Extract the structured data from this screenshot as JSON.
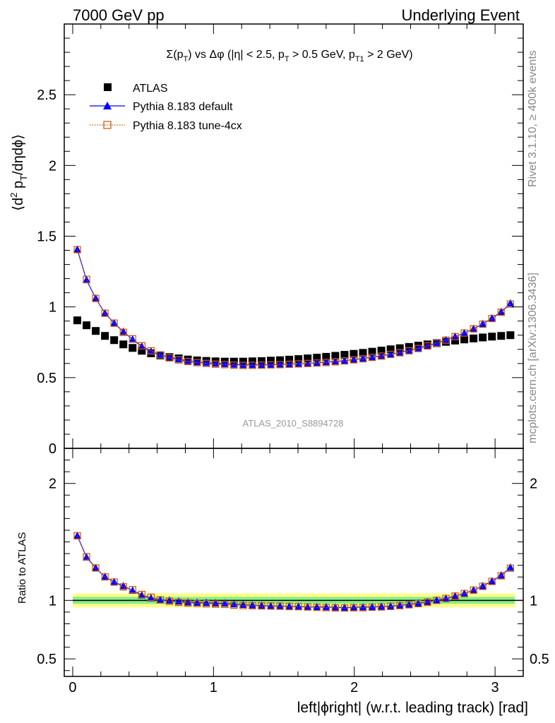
{
  "header": {
    "left": "7000 GeV pp",
    "right": "Underlying Event"
  },
  "side_labels": {
    "rivet": "Rivet 3.1.10, ≥ 400k events",
    "mcplots": "mcplots.cern.ch [arXiv:1306.3436]"
  },
  "watermark": "ATLAS_2010_S8894728",
  "chart_data": {
    "type": "scatter",
    "title": "Σ(pT) vs Δφ (|η| < 2.5, pT > 0.5 GeV, pT1 > 2 GeV)",
    "title_parts": {
      "sigma": "Σ(p",
      "sub_T": "T",
      "mid": ") vs Δφ (|η| < 2.5, p",
      "sub_T2": "T",
      "mid2": " > 0.5 GeV, p",
      "sub_T1": "T1",
      "end": " > 2 GeV)"
    },
    "xlabel": "left|ϕright| (w.r.t. leading track) [rad]",
    "ylabel_main": "⟨d² pT/dηdϕ⟩",
    "ylabel_parts": {
      "a": "⟨d",
      "sup": "2",
      "b": " p",
      "sub": "T",
      "c": "/dηdϕ⟩"
    },
    "ylabel_ratio": "Ratio to ATLAS",
    "xlim": [
      -0.06,
      3.2
    ],
    "ylim_main": [
      0,
      3.0
    ],
    "ylim_ratio": [
      0.35,
      2.3
    ],
    "x_ticks": [
      "0",
      "1",
      "2",
      "3"
    ],
    "y_ticks_main": [
      "0",
      "0.5",
      "1",
      "1.5",
      "2",
      "2.5"
    ],
    "y_ticks_ratio": [
      "0.5",
      "1",
      "2"
    ],
    "legend_position": "top-left",
    "x": [
      0.0327,
      0.0982,
      0.1636,
      0.2291,
      0.2945,
      0.36,
      0.4254,
      0.4909,
      0.5563,
      0.6218,
      0.6872,
      0.7527,
      0.8181,
      0.8836,
      0.949,
      1.0145,
      1.0799,
      1.1454,
      1.2108,
      1.2763,
      1.3417,
      1.4072,
      1.4726,
      1.5381,
      1.6035,
      1.669,
      1.7344,
      1.7999,
      1.8653,
      1.9308,
      1.9962,
      2.0617,
      2.1271,
      2.1926,
      2.258,
      2.3235,
      2.3889,
      2.4544,
      2.5198,
      2.5853,
      2.6507,
      2.7162,
      2.7816,
      2.8471,
      2.9125,
      2.978,
      3.0434,
      3.1089
    ],
    "series": [
      {
        "name": "ATLAS",
        "color": "#000000",
        "marker": "square-filled",
        "values": [
          0.905,
          0.87,
          0.83,
          0.795,
          0.765,
          0.735,
          0.71,
          0.69,
          0.672,
          0.657,
          0.645,
          0.636,
          0.628,
          0.622,
          0.618,
          0.615,
          0.613,
          0.613,
          0.613,
          0.615,
          0.617,
          0.62,
          0.623,
          0.627,
          0.631,
          0.636,
          0.641,
          0.647,
          0.654,
          0.661,
          0.668,
          0.675,
          0.683,
          0.691,
          0.7,
          0.708,
          0.717,
          0.726,
          0.735,
          0.744,
          0.753,
          0.762,
          0.77,
          0.777,
          0.784,
          0.79,
          0.795,
          0.8
        ]
      },
      {
        "name": "Pythia 8.183 default",
        "color": "#0000ff",
        "marker": "triangle-filled",
        "line": "solid",
        "values": [
          1.405,
          1.19,
          1.06,
          0.955,
          0.885,
          0.825,
          0.77,
          0.72,
          0.685,
          0.66,
          0.645,
          0.63,
          0.618,
          0.61,
          0.605,
          0.6,
          0.597,
          0.593,
          0.59,
          0.59,
          0.59,
          0.59,
          0.593,
          0.595,
          0.598,
          0.6,
          0.605,
          0.61,
          0.615,
          0.62,
          0.628,
          0.636,
          0.645,
          0.655,
          0.665,
          0.678,
          0.692,
          0.708,
          0.725,
          0.745,
          0.765,
          0.79,
          0.815,
          0.845,
          0.88,
          0.92,
          0.965,
          1.025
        ]
      },
      {
        "name": "Pythia 8.183 tune-4cx",
        "color": "#cc5500",
        "marker": "square-open",
        "line": "dotted",
        "values": [
          1.405,
          1.195,
          1.06,
          0.955,
          0.885,
          0.82,
          0.775,
          0.725,
          0.69,
          0.66,
          0.64,
          0.625,
          0.614,
          0.606,
          0.6,
          0.595,
          0.592,
          0.588,
          0.586,
          0.587,
          0.588,
          0.59,
          0.592,
          0.594,
          0.597,
          0.6,
          0.603,
          0.607,
          0.612,
          0.618,
          0.626,
          0.633,
          0.643,
          0.652,
          0.664,
          0.676,
          0.69,
          0.706,
          0.724,
          0.744,
          0.765,
          0.79,
          0.815,
          0.845,
          0.878,
          0.918,
          0.962,
          1.02
        ]
      }
    ],
    "ratio_band": {
      "outer": [
        0.94,
        1.06
      ],
      "inner": [
        0.97,
        1.03
      ],
      "outer_color": "#ffff88",
      "inner_color": "#88ee88"
    }
  }
}
